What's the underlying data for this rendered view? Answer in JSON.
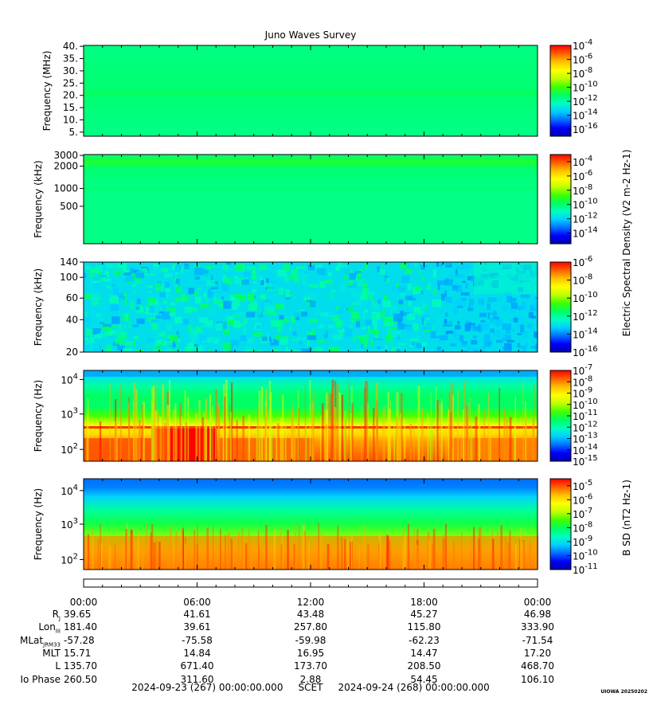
{
  "title": "Juno Waves Survey",
  "footnote": "UIOWA 20250202",
  "scet": {
    "start": "2024-09-23 (267) 00:00:00.000",
    "label": "SCET",
    "end": "2024-09-24 (268) 00:00:00.000"
  },
  "time_ticks": [
    "00:00",
    "06:00",
    "12:00",
    "18:00",
    "00:00"
  ],
  "ephemeris": [
    {
      "label": "R",
      "sub": "J",
      "values": [
        "39.65",
        "41.61",
        "43.48",
        "45.27",
        "46.98"
      ]
    },
    {
      "label": "Lon",
      "sub": "III",
      "values": [
        "181.40",
        "39.61",
        "257.80",
        "115.80",
        "333.90"
      ]
    },
    {
      "label": "MLat",
      "sub": "JRM33",
      "values": [
        "-57.28",
        "-75.58",
        "-59.98",
        "-62.23",
        "-71.54"
      ]
    },
    {
      "label": "MLT",
      "sub": "",
      "values": [
        "15.71",
        "14.84",
        "16.95",
        "14.47",
        "17.20"
      ]
    },
    {
      "label": "L",
      "sub": "",
      "values": [
        "135.70",
        "671.40",
        "173.70",
        "208.50",
        "468.70"
      ]
    },
    {
      "label": "Io Phase",
      "sub": "",
      "values": [
        "260.50",
        "311.60",
        "2.88",
        "54.45",
        "106.10"
      ]
    }
  ],
  "colors": {
    "scale": [
      "#0000a8",
      "#0000ff",
      "#0070ff",
      "#00d0ff",
      "#00ffc0",
      "#00ff60",
      "#40ff00",
      "#c0ff00",
      "#ffff00",
      "#ffc000",
      "#ff6000",
      "#ff0000"
    ]
  },
  "chart_data": [
    {
      "type": "heatmap",
      "panel": "HFR high",
      "ylabel": "Frequency (MHz)",
      "yscale": "linear",
      "ylim": [
        3.5,
        41
      ],
      "yticks": [
        "5.",
        "10.",
        "15.",
        "20.",
        "25.",
        "30.",
        "35.",
        "40."
      ],
      "colorbar_ticks": [
        "10^-4",
        "10^-6",
        "10^-8",
        "10^-10",
        "10^-12",
        "10^-14",
        "10^-16"
      ],
      "colorbar_range": [
        -17,
        -4
      ]
    },
    {
      "type": "heatmap",
      "panel": "HFR low",
      "ylabel": "Frequency (kHz)",
      "yscale": "log",
      "ylim": [
        140,
        3000
      ],
      "yticks": [
        "500",
        "1000",
        "2000",
        "3000"
      ],
      "colorbar_ticks": [
        "10^-4",
        "10^-6",
        "10^-8",
        "10^-10",
        "10^-12",
        "10^-14"
      ],
      "colorbar_range": [
        -15.5,
        -3
      ]
    },
    {
      "type": "heatmap",
      "panel": "LFR high",
      "ylabel": "Frequency (kHz)",
      "yscale": "log",
      "ylim": [
        20,
        140
      ],
      "yticks": [
        "20",
        "40",
        "60",
        "100",
        "140"
      ],
      "colorbar_ticks": [
        "10^-6",
        "10^-8",
        "10^-10",
        "10^-12",
        "10^-14",
        "10^-16"
      ],
      "colorbar_range": [
        -16,
        -6
      ]
    },
    {
      "type": "heatmap",
      "panel": "LFR low E",
      "ylabel": "Frequency (Hz)",
      "yscale": "log",
      "ylim": [
        50,
        24000
      ],
      "yticks": [
        "10^2",
        "10^3",
        "10^4"
      ],
      "colorbar_ticks": [
        "10^-7",
        "10^-8",
        "10^-9",
        "10^-10",
        "10^-11",
        "10^-12",
        "10^-13",
        "10^-14",
        "10^-15"
      ],
      "colorbar_range": [
        -15,
        -7
      ]
    },
    {
      "type": "heatmap",
      "panel": "LFR low B",
      "ylabel": "Frequency (Hz)",
      "yscale": "log",
      "ylim": [
        50,
        24000
      ],
      "yticks": [
        "10^2",
        "10^3",
        "10^4"
      ],
      "colorbar_ticks": [
        "10^-5",
        "10^-6",
        "10^-7",
        "10^-8",
        "10^-9",
        "10^-10",
        "10^-11"
      ],
      "colorbar_range": [
        -11,
        -4.5
      ]
    }
  ],
  "colorbar_labels": {
    "electric": "Electric Spectral Density (V^2 m^-2 Hz^-1)",
    "magnetic": "B SD (nT^2 Hz^-1)"
  }
}
